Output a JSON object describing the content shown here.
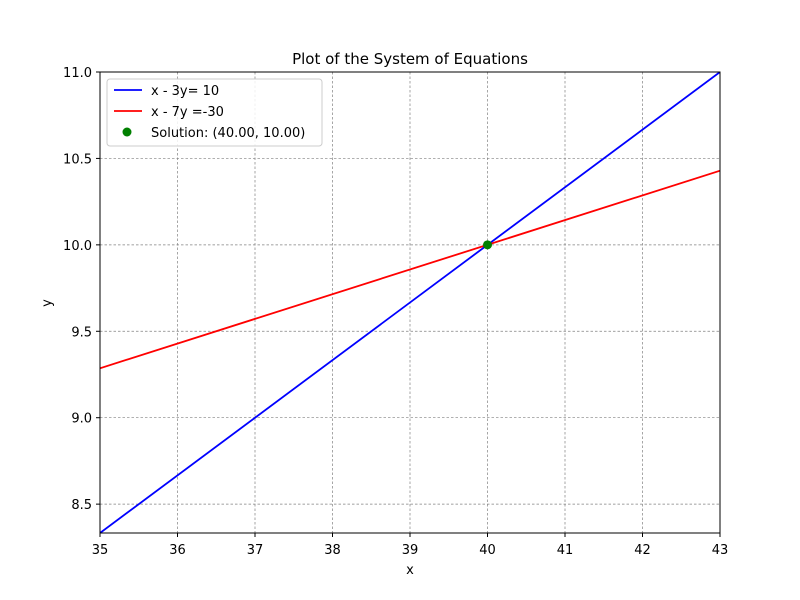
{
  "chart_data": {
    "type": "line",
    "title": "Plot of the System of Equations",
    "xlabel": "x",
    "ylabel": "y",
    "xlim": [
      35,
      43
    ],
    "ylim": [
      8.333,
      11.0
    ],
    "xticks": [
      35,
      36,
      37,
      38,
      39,
      40,
      41,
      42,
      43
    ],
    "yticks": [
      8.5,
      9.0,
      9.5,
      10.0,
      10.5,
      11.0
    ],
    "ytick_labels": [
      "8.5",
      "9.0",
      "9.5",
      "10.0",
      "10.5",
      "11.0"
    ],
    "grid": true,
    "legend_position": "top-left",
    "series": [
      {
        "name": "x - 3y= 10",
        "color": "#0000ff",
        "kind": "line",
        "x": [
          35,
          43
        ],
        "y": [
          8.333,
          11.0
        ]
      },
      {
        "name": "x - 7y =-30",
        "color": "#ff0000",
        "kind": "line",
        "x": [
          35,
          43
        ],
        "y": [
          9.286,
          10.429
        ]
      },
      {
        "name": "Solution: (40.00, 10.00)",
        "color": "#008000",
        "kind": "point",
        "x": [
          40
        ],
        "y": [
          10
        ]
      }
    ]
  }
}
